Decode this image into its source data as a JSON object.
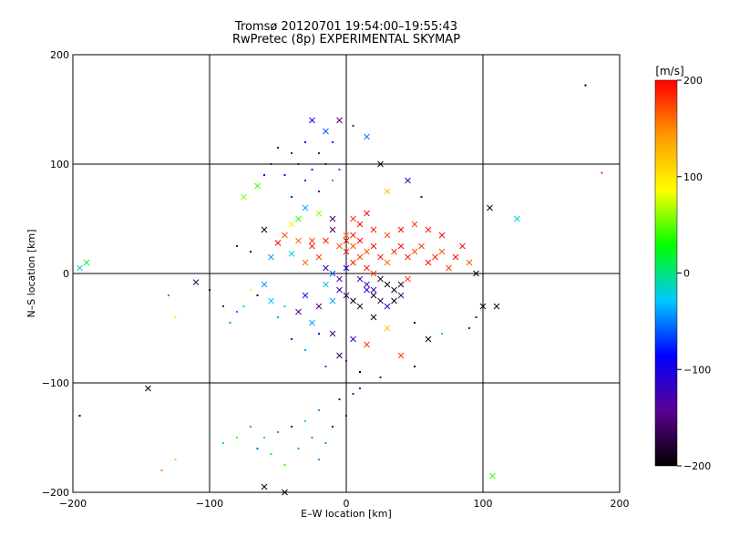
{
  "chart_data": {
    "type": "scatter",
    "title": "Tromsø 20120701 19:54:00–19:55:43",
    "subtitle": "RwPretec (8p) EXPERIMENTAL SKYMAP",
    "xlabel": "E–W location [km]",
    "ylabel": "N–S location [km]",
    "xlim": [
      -200,
      200
    ],
    "ylim": [
      -200,
      200
    ],
    "xticks": [
      "−200",
      "−100",
      "0",
      "100",
      "200"
    ],
    "yticks": [
      "−200",
      "−100",
      "0",
      "100",
      "200"
    ],
    "grid": true,
    "colorbar": {
      "label": "[m/s]",
      "range": [
        -200,
        200
      ],
      "ticks": [
        "200",
        "100",
        "0",
        "−100",
        "−200"
      ],
      "colors": [
        "#000000",
        "#5a0090",
        "#0000ff",
        "#00c8ff",
        "#00ff00",
        "#ffff00",
        "#ff9900",
        "#ff0000"
      ]
    },
    "series_note_markers": [
      "dot",
      "cross"
    ],
    "points": [
      [
        -25,
        140,
        -100,
        "x"
      ],
      [
        -15,
        130,
        -60,
        "x"
      ],
      [
        -5,
        140,
        -150,
        "x"
      ],
      [
        -30,
        120,
        -90,
        "d"
      ],
      [
        -40,
        110,
        -120,
        "d"
      ],
      [
        -20,
        110,
        -150,
        "d"
      ],
      [
        -10,
        120,
        -80,
        "d"
      ],
      [
        5,
        135,
        -140,
        "d"
      ],
      [
        15,
        125,
        -50,
        "x"
      ],
      [
        -50,
        115,
        -120,
        "d"
      ],
      [
        -35,
        100,
        -160,
        "d"
      ],
      [
        -25,
        95,
        -100,
        "d"
      ],
      [
        -15,
        100,
        -130,
        "d"
      ],
      [
        -5,
        95,
        -60,
        "d"
      ],
      [
        -45,
        90,
        -110,
        "d"
      ],
      [
        -55,
        100,
        -140,
        "d"
      ],
      [
        -60,
        90,
        -100,
        "d"
      ],
      [
        -10,
        85,
        -40,
        "d"
      ],
      [
        -30,
        85,
        -120,
        "d"
      ],
      [
        -65,
        80,
        40,
        "x"
      ],
      [
        25,
        100,
        -200,
        "x"
      ],
      [
        45,
        85,
        -120,
        "x"
      ],
      [
        55,
        70,
        -160,
        "d"
      ],
      [
        30,
        75,
        120,
        "x"
      ],
      [
        -20,
        75,
        -150,
        "d"
      ],
      [
        -40,
        70,
        -80,
        "d"
      ],
      [
        -75,
        70,
        60,
        "x"
      ],
      [
        105,
        60,
        -200,
        "x"
      ],
      [
        125,
        50,
        -20,
        "x"
      ],
      [
        175,
        172,
        -200,
        "d"
      ],
      [
        187,
        92,
        180,
        "d"
      ],
      [
        -190,
        10,
        20,
        "x"
      ],
      [
        -195,
        5,
        -20,
        "x"
      ],
      [
        -110,
        -8,
        -170,
        "x"
      ],
      [
        -145,
        -105,
        -200,
        "x"
      ],
      [
        -60,
        40,
        -200,
        "x"
      ],
      [
        -45,
        35,
        170,
        "x"
      ],
      [
        -35,
        30,
        160,
        "x"
      ],
      [
        -25,
        25,
        190,
        "x"
      ],
      [
        -50,
        28,
        200,
        "x"
      ],
      [
        -70,
        20,
        -180,
        "d"
      ],
      [
        -80,
        25,
        -160,
        "d"
      ],
      [
        -55,
        15,
        -40,
        "x"
      ],
      [
        -40,
        18,
        -20,
        "x"
      ],
      [
        -30,
        10,
        160,
        "x"
      ],
      [
        -20,
        15,
        180,
        "x"
      ],
      [
        -15,
        5,
        -120,
        "x"
      ],
      [
        -10,
        0,
        -60,
        "x"
      ],
      [
        -5,
        -5,
        -140,
        "x"
      ],
      [
        0,
        5,
        -100,
        "x"
      ],
      [
        5,
        10,
        190,
        "x"
      ],
      [
        10,
        15,
        180,
        "x"
      ],
      [
        15,
        20,
        170,
        "x"
      ],
      [
        20,
        25,
        200,
        "x"
      ],
      [
        25,
        15,
        190,
        "x"
      ],
      [
        30,
        10,
        160,
        "x"
      ],
      [
        35,
        20,
        180,
        "x"
      ],
      [
        40,
        25,
        200,
        "x"
      ],
      [
        45,
        15,
        190,
        "x"
      ],
      [
        50,
        20,
        170,
        "x"
      ],
      [
        55,
        25,
        180,
        "x"
      ],
      [
        60,
        10,
        200,
        "x"
      ],
      [
        65,
        15,
        190,
        "x"
      ],
      [
        70,
        20,
        170,
        "x"
      ],
      [
        75,
        5,
        180,
        "x"
      ],
      [
        80,
        15,
        200,
        "x"
      ],
      [
        85,
        25,
        190,
        "x"
      ],
      [
        90,
        10,
        170,
        "x"
      ],
      [
        95,
        0,
        -200,
        "x"
      ],
      [
        70,
        35,
        200,
        "x"
      ],
      [
        60,
        40,
        190,
        "x"
      ],
      [
        50,
        45,
        180,
        "x"
      ],
      [
        40,
        40,
        200,
        "x"
      ],
      [
        30,
        35,
        170,
        "x"
      ],
      [
        20,
        40,
        190,
        "x"
      ],
      [
        10,
        45,
        200,
        "x"
      ],
      [
        0,
        35,
        160,
        "x"
      ],
      [
        -10,
        40,
        -160,
        "x"
      ],
      [
        5,
        50,
        180,
        "x"
      ],
      [
        15,
        55,
        200,
        "x"
      ],
      [
        0,
        20,
        190,
        "x"
      ],
      [
        5,
        25,
        170,
        "x"
      ],
      [
        10,
        30,
        200,
        "x"
      ],
      [
        15,
        5,
        190,
        "x"
      ],
      [
        20,
        0,
        180,
        "x"
      ],
      [
        25,
        -5,
        -180,
        "x"
      ],
      [
        30,
        -10,
        -200,
        "x"
      ],
      [
        35,
        -15,
        -190,
        "x"
      ],
      [
        40,
        -20,
        -160,
        "x"
      ],
      [
        45,
        -5,
        180,
        "x"
      ],
      [
        -5,
        -15,
        -120,
        "x"
      ],
      [
        0,
        -20,
        -160,
        "x"
      ],
      [
        5,
        -25,
        -200,
        "x"
      ],
      [
        10,
        -30,
        -180,
        "x"
      ],
      [
        15,
        -15,
        -100,
        "x"
      ],
      [
        20,
        -20,
        -200,
        "x"
      ],
      [
        -10,
        -25,
        -40,
        "x"
      ],
      [
        -20,
        -30,
        -150,
        "x"
      ],
      [
        -30,
        -20,
        -80,
        "x"
      ],
      [
        -15,
        -10,
        -20,
        "x"
      ],
      [
        10,
        -5,
        -140,
        "x"
      ],
      [
        15,
        -10,
        -130,
        "x"
      ],
      [
        20,
        -15,
        -120,
        "x"
      ],
      [
        25,
        -25,
        -170,
        "x"
      ],
      [
        30,
        -30,
        -110,
        "x"
      ],
      [
        35,
        -25,
        -200,
        "x"
      ],
      [
        40,
        -10,
        -180,
        "x"
      ],
      [
        -25,
        -45,
        -40,
        "x"
      ],
      [
        -10,
        -55,
        -160,
        "x"
      ],
      [
        5,
        -60,
        -120,
        "x"
      ],
      [
        15,
        -65,
        180,
        "x"
      ],
      [
        20,
        -40,
        -200,
        "x"
      ],
      [
        30,
        -50,
        120,
        "x"
      ],
      [
        40,
        -75,
        180,
        "x"
      ],
      [
        60,
        -60,
        -200,
        "x"
      ],
      [
        -40,
        -60,
        -120,
        "d"
      ],
      [
        -30,
        -70,
        -40,
        "d"
      ],
      [
        -20,
        -55,
        -100,
        "d"
      ],
      [
        50,
        -45,
        -200,
        "d"
      ],
      [
        70,
        -55,
        -20,
        "d"
      ],
      [
        -5,
        -75,
        -170,
        "x"
      ],
      [
        0,
        -80,
        -130,
        "d"
      ],
      [
        10,
        -90,
        -200,
        "d"
      ],
      [
        25,
        -95,
        -150,
        "d"
      ],
      [
        -15,
        -85,
        -60,
        "d"
      ],
      [
        50,
        -85,
        -200,
        "d"
      ],
      [
        90,
        -50,
        -120,
        "d"
      ],
      [
        100,
        -30,
        -200,
        "x"
      ],
      [
        110,
        -30,
        -200,
        "x"
      ],
      [
        95,
        -40,
        -160,
        "d"
      ],
      [
        -60,
        -10,
        -40,
        "x"
      ],
      [
        -65,
        -20,
        -180,
        "d"
      ],
      [
        -55,
        -25,
        -30,
        "x"
      ],
      [
        -70,
        -15,
        80,
        "d"
      ],
      [
        -45,
        -30,
        -20,
        "d"
      ],
      [
        -35,
        -35,
        -150,
        "x"
      ],
      [
        -50,
        -40,
        -40,
        "d"
      ],
      [
        -75,
        -30,
        0,
        "d"
      ],
      [
        -80,
        -35,
        -50,
        "d"
      ],
      [
        -85,
        -45,
        -40,
        "d"
      ],
      [
        0,
        -130,
        -120,
        "d"
      ],
      [
        5,
        -110,
        -150,
        "d"
      ],
      [
        10,
        -105,
        -120,
        "d"
      ],
      [
        -5,
        -115,
        -160,
        "d"
      ],
      [
        -20,
        -125,
        -40,
        "d"
      ],
      [
        -30,
        -135,
        -20,
        "d"
      ],
      [
        -40,
        -140,
        -160,
        "d"
      ],
      [
        -50,
        -145,
        -40,
        "d"
      ],
      [
        -60,
        -150,
        20,
        "d"
      ],
      [
        -70,
        -140,
        -40,
        "d"
      ],
      [
        -25,
        -150,
        -40,
        "d"
      ],
      [
        -15,
        -155,
        -40,
        "d"
      ],
      [
        -10,
        -140,
        -160,
        "d"
      ],
      [
        -35,
        -160,
        -40,
        "d"
      ],
      [
        -55,
        -165,
        0,
        "d"
      ],
      [
        -80,
        -150,
        40,
        "d"
      ],
      [
        -90,
        -155,
        20,
        "d"
      ],
      [
        -65,
        -160,
        -60,
        "d"
      ],
      [
        -20,
        -170,
        -40,
        "d"
      ],
      [
        -45,
        -175,
        40,
        "d"
      ],
      [
        -130,
        -20,
        -40,
        "d"
      ],
      [
        -125,
        -40,
        100,
        "d"
      ],
      [
        -135,
        -180,
        150,
        "d"
      ],
      [
        -125,
        -170,
        60,
        "d"
      ],
      [
        -195,
        -130,
        -200,
        "d"
      ],
      [
        -100,
        -15,
        -200,
        "d"
      ],
      [
        -90,
        -30,
        -150,
        "d"
      ],
      [
        -45,
        -200,
        -200,
        "x"
      ],
      [
        -60,
        -195,
        -200,
        "x"
      ],
      [
        107,
        -185,
        40,
        "x"
      ],
      [
        -25,
        30,
        180,
        "x"
      ],
      [
        -15,
        30,
        190,
        "x"
      ],
      [
        -5,
        25,
        170,
        "x"
      ],
      [
        0,
        30,
        200,
        "x"
      ],
      [
        5,
        35,
        190,
        "x"
      ],
      [
        -35,
        50,
        40,
        "x"
      ],
      [
        -20,
        55,
        60,
        "x"
      ],
      [
        -10,
        50,
        -160,
        "x"
      ],
      [
        -30,
        60,
        -40,
        "x"
      ],
      [
        -40,
        45,
        80,
        "x"
      ]
    ]
  }
}
